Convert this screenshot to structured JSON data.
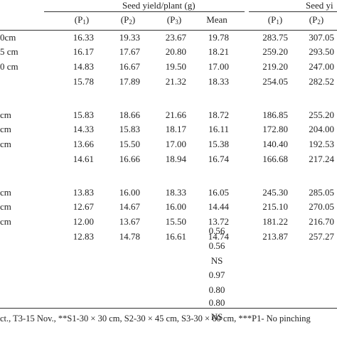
{
  "header": {
    "group1_title": "Seed yield/plant (g)",
    "group2_title": "Seed yi",
    "cols": [
      {
        "p": "P",
        "sub": "1",
        "close": ")"
      },
      {
        "p": "P",
        "sub": "2",
        "close": ")"
      },
      {
        "p": "P",
        "sub": "3",
        "close": ")"
      },
      {
        "label": "Mean"
      },
      {
        "p": "P",
        "sub": "1",
        "close": ")"
      },
      {
        "p": "P",
        "sub": "2",
        "close": ")"
      }
    ]
  },
  "row_labels": [
    "0cm",
    "5 cm",
    "0 cm",
    "",
    "cm",
    "cm",
    "cm",
    "",
    "cm",
    "cm",
    "cm",
    ""
  ],
  "rows": [
    [
      "16.33",
      "19.33",
      "23.67",
      "19.78",
      "283.75",
      "307.05"
    ],
    [
      "16.17",
      "17.67",
      "20.80",
      "18.21",
      "259.20",
      "293.50"
    ],
    [
      "14.83",
      "16.67",
      "19.50",
      "17.00",
      "219.20",
      "247.00"
    ],
    [
      "15.78",
      "17.89",
      "21.32",
      "18.33",
      "254.05",
      "282.52"
    ],
    [
      "15.83",
      "18.66",
      "21.66",
      "18.72",
      "186.85",
      "255.20"
    ],
    [
      "14.33",
      "15.83",
      "18.17",
      "16.11",
      "172.80",
      "204.00"
    ],
    [
      "13.66",
      "15.50",
      "17.00",
      "15.38",
      "140.40",
      "192.53"
    ],
    [
      "14.61",
      "16.66",
      "18.94",
      "16.74",
      "166.68",
      "217.24"
    ],
    [
      "13.83",
      "16.00",
      "18.33",
      "16.05",
      "245.30",
      "285.05"
    ],
    [
      "12.67",
      "14.67",
      "16.00",
      "14.44",
      "215.10",
      "270.05"
    ],
    [
      "12.00",
      "13.67",
      "15.50",
      "13.72",
      "181.22",
      "216.70"
    ],
    [
      "12.83",
      "14.78",
      "16.61",
      "14.74",
      "213.87",
      "257.27"
    ]
  ],
  "stats": [
    "0.56",
    "0.56",
    "NS",
    "0.97",
    "0.80",
    "0.80",
    "NS"
  ],
  "footnote": "ct., T3-15 Nov., **S1-30 × 30 cm, S2-30 × 45 cm, S3-30 × 60 cm, ***P1- No pinching"
}
